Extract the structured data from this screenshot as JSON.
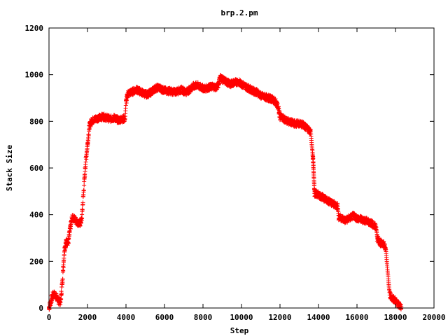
{
  "chart_data": {
    "type": "scatter",
    "title": "brp.2.pm",
    "xlabel": "Step",
    "ylabel": "Stack Size",
    "xlim": [
      0,
      20000
    ],
    "ylim": [
      0,
      1200
    ],
    "x_ticks": [
      "0",
      "2000",
      "4000",
      "6000",
      "8000",
      "10000",
      "12000",
      "14000",
      "16000",
      "18000",
      "20000"
    ],
    "y_ticks": [
      "0",
      "200",
      "400",
      "600",
      "800",
      "1000",
      "1200"
    ],
    "grid": false,
    "legend": "none",
    "marker": "plus",
    "color": "#ff0000",
    "series": [
      {
        "points": [
          [
            0,
            0
          ],
          [
            100,
            30
          ],
          [
            200,
            55
          ],
          [
            300,
            60
          ],
          [
            400,
            45
          ],
          [
            500,
            30
          ],
          [
            600,
            25
          ],
          [
            700,
            120
          ],
          [
            800,
            250
          ],
          [
            900,
            285
          ],
          [
            1000,
            280
          ],
          [
            1100,
            340
          ],
          [
            1200,
            385
          ],
          [
            1300,
            385
          ],
          [
            1400,
            375
          ],
          [
            1500,
            365
          ],
          [
            1600,
            360
          ],
          [
            1700,
            380
          ],
          [
            1800,
            500
          ],
          [
            1900,
            620
          ],
          [
            2000,
            700
          ],
          [
            2100,
            780
          ],
          [
            2200,
            800
          ],
          [
            2400,
            810
          ],
          [
            2600,
            815
          ],
          [
            2800,
            820
          ],
          [
            3000,
            815
          ],
          [
            3200,
            810
          ],
          [
            3400,
            815
          ],
          [
            3600,
            805
          ],
          [
            3800,
            810
          ],
          [
            3950,
            810
          ],
          [
            4000,
            880
          ],
          [
            4100,
            920
          ],
          [
            4300,
            925
          ],
          [
            4500,
            935
          ],
          [
            4700,
            930
          ],
          [
            4900,
            920
          ],
          [
            5100,
            915
          ],
          [
            5300,
            925
          ],
          [
            5500,
            940
          ],
          [
            5700,
            945
          ],
          [
            5900,
            935
          ],
          [
            6100,
            930
          ],
          [
            6300,
            930
          ],
          [
            6500,
            925
          ],
          [
            6700,
            930
          ],
          [
            6900,
            935
          ],
          [
            7100,
            925
          ],
          [
            7300,
            935
          ],
          [
            7500,
            950
          ],
          [
            7700,
            955
          ],
          [
            7900,
            945
          ],
          [
            8100,
            940
          ],
          [
            8300,
            945
          ],
          [
            8500,
            950
          ],
          [
            8700,
            945
          ],
          [
            8800,
            960
          ],
          [
            8900,
            990
          ],
          [
            9000,
            980
          ],
          [
            9200,
            970
          ],
          [
            9400,
            960
          ],
          [
            9600,
            965
          ],
          [
            9800,
            970
          ],
          [
            10000,
            960
          ],
          [
            10200,
            950
          ],
          [
            10400,
            940
          ],
          [
            10600,
            930
          ],
          [
            10800,
            925
          ],
          [
            11000,
            910
          ],
          [
            11200,
            905
          ],
          [
            11400,
            900
          ],
          [
            11600,
            895
          ],
          [
            11800,
            880
          ],
          [
            11900,
            860
          ],
          [
            12000,
            820
          ],
          [
            12200,
            810
          ],
          [
            12400,
            800
          ],
          [
            12600,
            795
          ],
          [
            12800,
            790
          ],
          [
            13000,
            790
          ],
          [
            13200,
            785
          ],
          [
            13400,
            770
          ],
          [
            13600,
            755
          ],
          [
            13650,
            700
          ],
          [
            13700,
            660
          ],
          [
            13720,
            630
          ],
          [
            13740,
            600
          ],
          [
            13760,
            560
          ],
          [
            13780,
            520
          ],
          [
            13800,
            490
          ],
          [
            14000,
            485
          ],
          [
            14200,
            475
          ],
          [
            14400,
            465
          ],
          [
            14600,
            455
          ],
          [
            14800,
            445
          ],
          [
            15000,
            435
          ],
          [
            15050,
            390
          ],
          [
            15200,
            385
          ],
          [
            15400,
            375
          ],
          [
            15600,
            385
          ],
          [
            15800,
            395
          ],
          [
            16000,
            385
          ],
          [
            16200,
            380
          ],
          [
            16400,
            375
          ],
          [
            16600,
            370
          ],
          [
            16800,
            360
          ],
          [
            17000,
            345
          ],
          [
            17050,
            300
          ],
          [
            17200,
            280
          ],
          [
            17400,
            270
          ],
          [
            17500,
            250
          ],
          [
            17550,
            200
          ],
          [
            17600,
            150
          ],
          [
            17650,
            100
          ],
          [
            17700,
            60
          ],
          [
            17800,
            45
          ],
          [
            17900,
            40
          ],
          [
            18000,
            30
          ],
          [
            18100,
            20
          ],
          [
            18200,
            10
          ],
          [
            18300,
            5
          ]
        ]
      }
    ]
  }
}
